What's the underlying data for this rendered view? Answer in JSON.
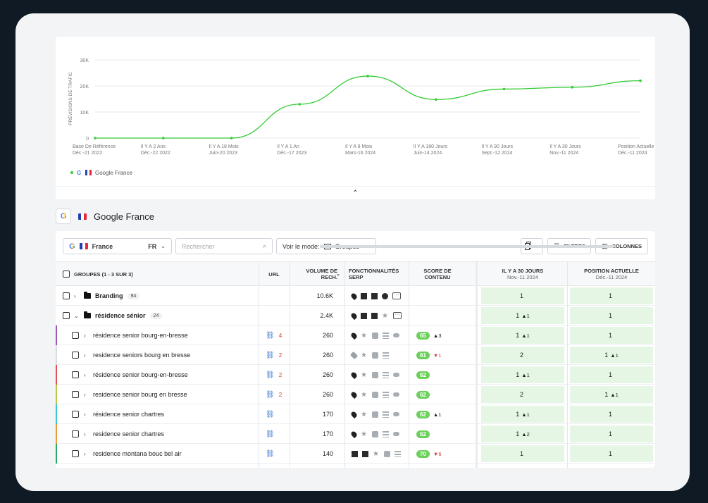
{
  "chart_data": {
    "type": "line",
    "ylabel": "PRÉVISIONS DE TRAFIC",
    "yticks": [
      "0",
      "10K",
      "20K",
      "30K"
    ],
    "ylim": [
      0,
      30000
    ],
    "categories": [
      [
        "Base De Référence",
        "Déc.-21 2022"
      ],
      [
        "Il Y A 2 Ans",
        "Déc.-22 2022"
      ],
      [
        "Il Y A 18 Mois",
        "Juin-20 2023"
      ],
      [
        "Il Y A 1 An",
        "Déc.-17 2023"
      ],
      [
        "Il Y A 9 Mois",
        "Mars-16 2024"
      ],
      [
        "Il Y A 180 Jours",
        "Juin-14 2024"
      ],
      [
        "Il Y A 90 Jours",
        "Sept.-12 2024"
      ],
      [
        "Il Y A 30 Jours",
        "Nov.-11 2024"
      ],
      [
        "Position Actuelle",
        "Déc.-11 2024"
      ]
    ],
    "series": [
      {
        "name": "Google France",
        "color": "#33cc33",
        "values": [
          0,
          0,
          0,
          13000,
          23800,
          14800,
          18800,
          19500,
          22000
        ]
      }
    ],
    "legend": "bottom-left"
  },
  "section": {
    "title": "Google France"
  },
  "toolbar": {
    "country": "France",
    "lang": "FR",
    "search_placeholder": "Rechercher",
    "mode_label": "Voir le mode:",
    "mode_value": "Groupes",
    "filters": "FILTRES",
    "columns": "COLONNES"
  },
  "columns": {
    "groups": "GROUPES (1 - 3 SUR 3)",
    "url": "URL",
    "volume": [
      "VOLUME DE",
      "RECH."
    ],
    "serp": [
      "FONCTIONNALITÉS",
      "SERP"
    ],
    "score": [
      "SCORE DE",
      "CONTENU"
    ],
    "pos30": [
      "IL Y A 30 JOURS",
      "Nov.-11 2024"
    ],
    "current": [
      "POSITION ACTUELLE",
      "Déc.-11 2024"
    ]
  },
  "rows": [
    {
      "type": "group",
      "name": "Branding",
      "count": "94",
      "volume": "10.6K",
      "pos30": "1",
      "pos30_delta": "",
      "current": "1",
      "current_delta": ""
    },
    {
      "type": "group",
      "name": "résidence sénior",
      "count": "24",
      "volume": "2.4K",
      "pos30": "1",
      "pos30_delta": "▲1",
      "current": "1",
      "current_delta": ""
    },
    {
      "type": "kw",
      "name": "résidence senior bourg-en-bresse",
      "urls": "4",
      "volume": "260",
      "score": "65",
      "score_delta": "▲3",
      "score_dir": "up",
      "pos30": "1",
      "pos30_delta": "▲1",
      "current": "1",
      "current_delta": "",
      "color": "#9b59b6"
    },
    {
      "type": "kw",
      "name": "residence seniors bourg en bresse",
      "urls": "2",
      "volume": "260",
      "score": "61",
      "score_delta": "▼1",
      "score_dir": "down",
      "pos30": "2",
      "pos30_delta": "",
      "current": "1",
      "current_delta": "▲1",
      "color": "#d9dce0"
    },
    {
      "type": "kw",
      "name": "résidence senior bourg-en-bresse",
      "urls": "2",
      "volume": "260",
      "score": "62",
      "score_delta": "",
      "score_dir": "",
      "pos30": "1",
      "pos30_delta": "▲1",
      "current": "1",
      "current_delta": "",
      "color": "#e0505a"
    },
    {
      "type": "kw",
      "name": "residence senior bourg en bresse",
      "urls": "2",
      "volume": "260",
      "score": "62",
      "score_delta": "",
      "score_dir": "",
      "pos30": "2",
      "pos30_delta": "",
      "current": "1",
      "current_delta": "▲1",
      "color": "#b7c94a"
    },
    {
      "type": "kw",
      "name": "résidence senior chartres",
      "urls": "",
      "volume": "170",
      "score": "62",
      "score_delta": "▲1",
      "score_dir": "up",
      "pos30": "1",
      "pos30_delta": "▲1",
      "current": "1",
      "current_delta": "",
      "color": "#39c6cf"
    },
    {
      "type": "kw",
      "name": "residence senior chartres",
      "urls": "",
      "volume": "170",
      "score": "62",
      "score_delta": "",
      "score_dir": "",
      "pos30": "1",
      "pos30_delta": "▲2",
      "current": "1",
      "current_delta": "",
      "color": "#e59a3b"
    },
    {
      "type": "kw",
      "name": "residence montana bouc bel air",
      "urls": "",
      "volume": "140",
      "score": "70",
      "score_delta": "▼6",
      "score_dir": "down",
      "pos30": "1",
      "pos30_delta": "",
      "current": "1",
      "current_delta": "",
      "color": "#2aa86a"
    }
  ]
}
